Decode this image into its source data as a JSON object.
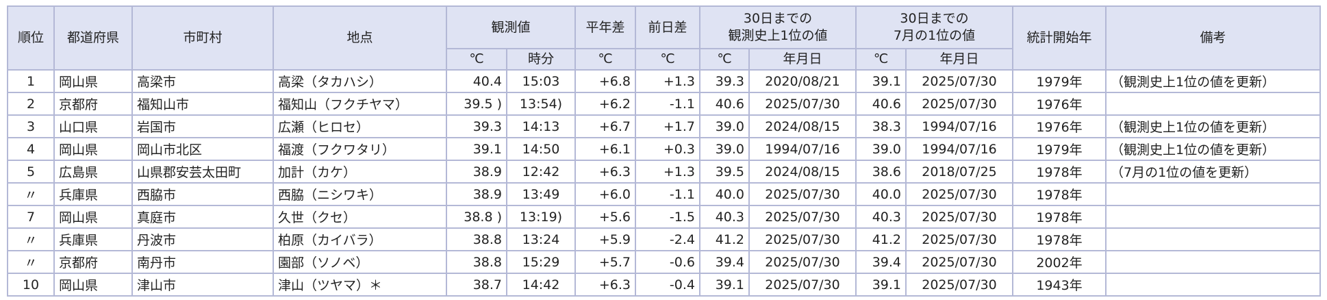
{
  "table": {
    "header": [
      "順位",
      "都道府県",
      "市町村",
      "地点",
      "観測値",
      "平年差",
      "前日差",
      "30日までの\n観測史上1位の値",
      "30日までの\n7月の1位の値",
      "統計開始年",
      "備考"
    ],
    "subheader": [
      "℃",
      "時分",
      "℃",
      "℃",
      "℃",
      "年月日",
      "℃",
      "年月日"
    ],
    "rows": [
      [
        "1",
        "岡山県",
        "高梁市",
        "高梁（タカハシ）",
        "40.4",
        "15:03",
        "+6.8",
        "+1.3",
        "39.3",
        "2020/08/21",
        "39.1",
        "2025/07/30",
        "1979年",
        "（観測史上1位の値を更新）"
      ],
      [
        "2",
        "京都府",
        "福知山市",
        "福知山（フクチヤマ）",
        "39.5 )",
        "13:54)",
        "+6.2",
        "-1.1",
        "40.6",
        "2025/07/30",
        "40.6",
        "2025/07/30",
        "1976年"
      ],
      [
        "3",
        "山口県",
        "岩国市",
        "広瀬（ヒロセ）",
        "39.3",
        "14:13",
        "+6.7",
        "+1.7",
        "39.0",
        "2024/08/15",
        "38.3",
        "1994/07/16",
        "1976年",
        "（観測史上1位の値を更新）"
      ],
      [
        "4",
        "岡山県",
        "岡山市北区",
        "福渡（フクワタリ）",
        "39.1",
        "14:50",
        "+6.1",
        "+0.3",
        "39.0",
        "1994/07/16",
        "39.0",
        "1994/07/16",
        "1979年",
        "（観測史上1位の値を更新）"
      ],
      [
        "5",
        "広島県",
        "山県郡安芸太田町",
        "加計（カケ）",
        "38.9",
        "12:42",
        "+6.3",
        "+1.3",
        "39.5",
        "2024/08/15",
        "38.6",
        "2018/07/25",
        "1978年",
        "（7月の1位の値を更新）"
      ],
      [
        "〃",
        "兵庫県",
        "西脇市",
        "西脇（ニシワキ）",
        "38.9",
        "13:49",
        "+6.0",
        "-1.1",
        "40.0",
        "2025/07/30",
        "40.0",
        "2025/07/30",
        "1978年"
      ],
      [
        "7",
        "岡山県",
        "真庭市",
        "久世（クセ）",
        "38.8 )",
        "13:19)",
        "+5.6",
        "-1.5",
        "40.3",
        "2025/07/30",
        "40.3",
        "2025/07/30",
        "1978年"
      ],
      [
        "〃",
        "兵庫県",
        "丹波市",
        "柏原（カイバラ）",
        "38.8",
        "13:24",
        "+5.9",
        "-2.4",
        "41.2",
        "2025/07/30",
        "41.2",
        "2025/07/30",
        "1978年"
      ],
      [
        "〃",
        "京都府",
        "南丹市",
        "園部（ソノベ）",
        "38.8",
        "15:29",
        "+5.7",
        "-0.6",
        "39.4",
        "2025/07/30",
        "39.4",
        "2025/07/30",
        "2002年"
      ],
      [
        "10",
        "岡山県",
        "津山市",
        "津山（ツヤマ）＊",
        "38.7",
        "14:42",
        "+6.3",
        "-0.4",
        "39.1",
        "2025/07/30",
        "39.1",
        "2025/07/30",
        "1943年"
      ]
    ]
  }
}
